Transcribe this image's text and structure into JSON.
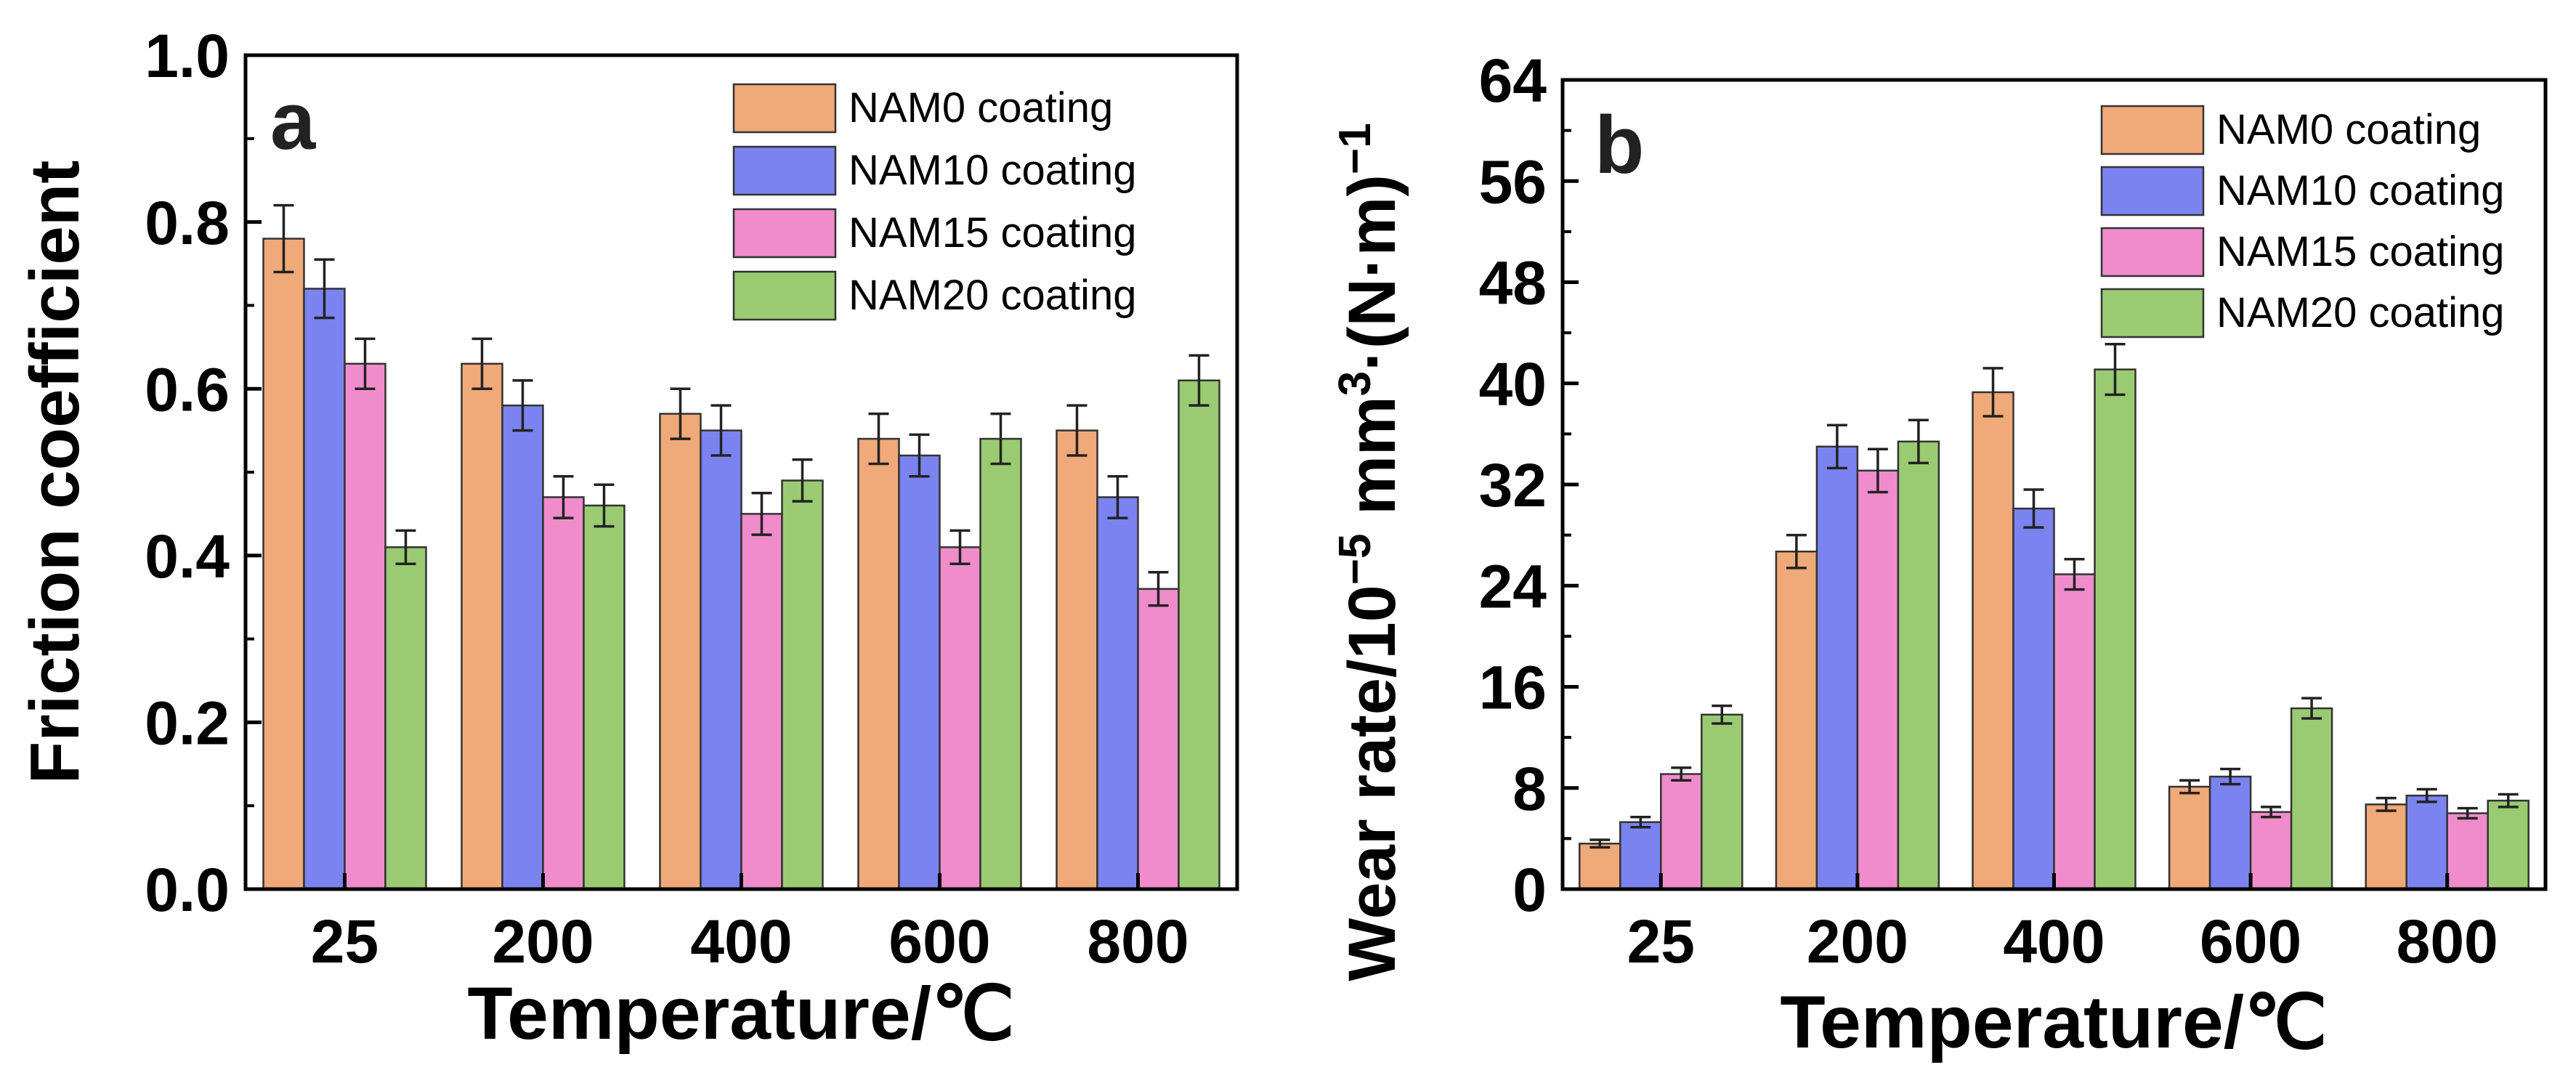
{
  "chart_data": [
    {
      "type": "bar",
      "panel_label": "a",
      "xlabel": "Temperature/℃",
      "ylabel": "Friction coefficient",
      "categories": [
        "25",
        "200",
        "400",
        "600",
        "800"
      ],
      "ylim": [
        0,
        1.0
      ],
      "yticks": [
        "0.0",
        "0.2",
        "0.4",
        "0.6",
        "0.8",
        "1.0"
      ],
      "ytick_values": [
        0,
        0.2,
        0.4,
        0.6,
        0.8,
        1.0
      ],
      "legend_position": "top-right",
      "series": [
        {
          "name": "NAM0 coating",
          "color": "#F0A978",
          "values": [
            0.78,
            0.63,
            0.57,
            0.54,
            0.55
          ],
          "errors": [
            0.04,
            0.03,
            0.03,
            0.03,
            0.03
          ]
        },
        {
          "name": "NAM10 coating",
          "color": "#7B83F0",
          "values": [
            0.72,
            0.58,
            0.55,
            0.52,
            0.47
          ],
          "errors": [
            0.035,
            0.03,
            0.03,
            0.025,
            0.025
          ]
        },
        {
          "name": "NAM15 coating",
          "color": "#F08CCB",
          "values": [
            0.63,
            0.47,
            0.45,
            0.41,
            0.36
          ],
          "errors": [
            0.03,
            0.025,
            0.025,
            0.02,
            0.02
          ]
        },
        {
          "name": "NAM20 coating",
          "color": "#9ACB72",
          "values": [
            0.41,
            0.46,
            0.49,
            0.54,
            0.61
          ],
          "errors": [
            0.02,
            0.025,
            0.025,
            0.03,
            0.03
          ]
        }
      ]
    },
    {
      "type": "bar",
      "panel_label": "b",
      "xlabel": "Temperature/℃",
      "ylabel_main": "Wear rate/10",
      "ylabel_exp1": "−5",
      "ylabel_mid": " mm",
      "ylabel_exp2": "3",
      "ylabel_end": "·(N·m)",
      "ylabel_exp3": "−1",
      "categories": [
        "25",
        "200",
        "400",
        "600",
        "800"
      ],
      "ylim": [
        0,
        64
      ],
      "yticks": [
        "0",
        "8",
        "16",
        "24",
        "32",
        "40",
        "48",
        "56",
        "64"
      ],
      "ytick_values": [
        0,
        8,
        16,
        24,
        32,
        40,
        48,
        56,
        64
      ],
      "legend_position": "top-right",
      "series": [
        {
          "name": "NAM0 coating",
          "color": "#F0A978",
          "values": [
            3.6,
            26.7,
            39.3,
            8.1,
            6.7
          ],
          "errors": [
            0.3,
            1.3,
            1.9,
            0.5,
            0.5
          ]
        },
        {
          "name": "NAM10 coating",
          "color": "#7B83F0",
          "values": [
            5.3,
            35.0,
            30.1,
            8.9,
            7.4
          ],
          "errors": [
            0.4,
            1.7,
            1.5,
            0.6,
            0.5
          ]
        },
        {
          "name": "NAM15 coating",
          "color": "#F08CCB",
          "values": [
            9.1,
            33.1,
            24.9,
            6.1,
            6.0
          ],
          "errors": [
            0.5,
            1.7,
            1.2,
            0.4,
            0.4
          ]
        },
        {
          "name": "NAM20 coating",
          "color": "#9ACB72",
          "values": [
            13.8,
            35.4,
            41.1,
            14.3,
            7.0
          ],
          "errors": [
            0.7,
            1.7,
            2.0,
            0.8,
            0.5
          ]
        }
      ]
    }
  ]
}
